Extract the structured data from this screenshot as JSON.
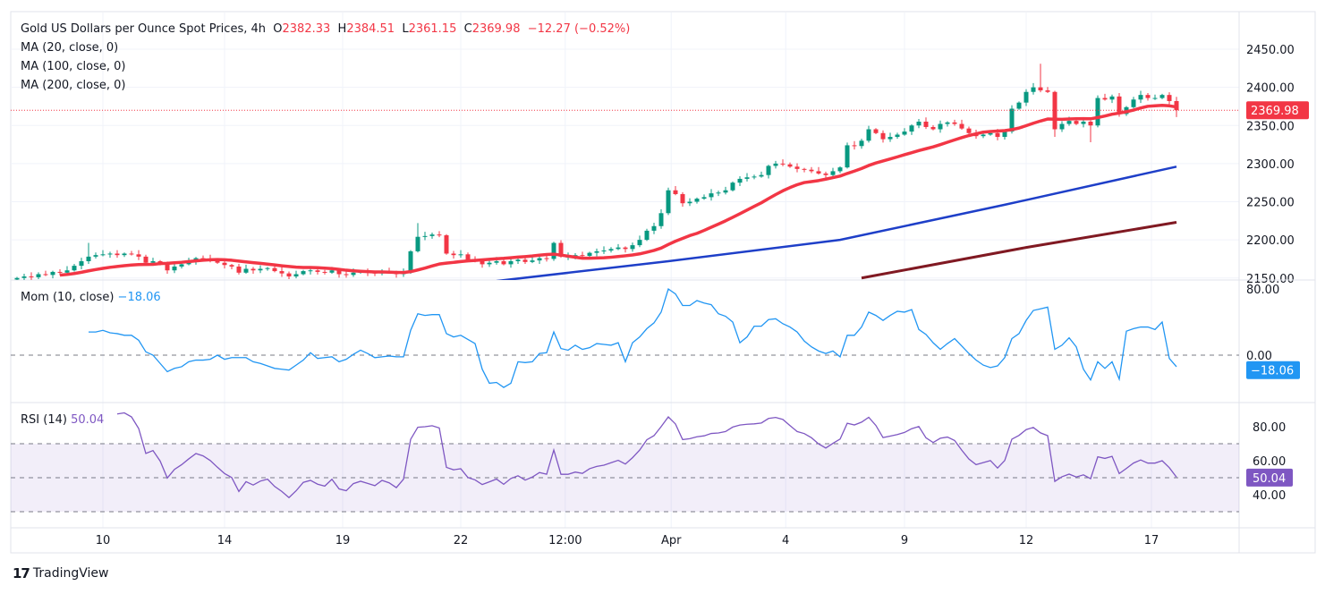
{
  "header": {
    "symbol": "Gold US Dollars per Ounce Spot Prices, 4h",
    "o_label": "O",
    "o": "2382.33",
    "h_label": "H",
    "h": "2384.51",
    "l_label": "L",
    "l": "2361.15",
    "c_label": "C",
    "c": "2369.98",
    "change": "−12.27 (−0.52%)"
  },
  "indicators": {
    "ma20": "MA (20, close, 0)",
    "ma100": "MA (100, close, 0)",
    "ma200": "MA (200, close, 0)",
    "mom_label": "Mom (10, close)",
    "mom_value": "−18.06",
    "rsi_label": "RSI (14)",
    "rsi_value": "50.04"
  },
  "branding": {
    "logo_mark": "17",
    "name": "TradingView"
  },
  "colors": {
    "up": "#089981",
    "down": "#f23645",
    "ma20": "#f23645",
    "ma100": "#1e3fc8",
    "ma200": "#801922",
    "mom": "#2196f3",
    "rsi": "#7e57c2"
  },
  "chart_data": {
    "type": "candlestick",
    "title": "Gold US Dollars per Ounce Spot Prices, 4h",
    "price_axis": {
      "ticks": [
        "2450.00",
        "2400.00",
        "2350.00",
        "2300.00",
        "2250.00",
        "2200.00",
        "2150.00"
      ],
      "range": [
        2150,
        2450
      ],
      "last_price_label": "2369.98",
      "last_price": 2369.98
    },
    "mom_axis": {
      "ticks": [
        "80.00",
        "0.00"
      ],
      "tick_values": [
        80,
        0
      ],
      "last_label": "−18.06",
      "last": -18.06
    },
    "rsi_axis": {
      "ticks": [
        "80.00",
        "60.00",
        "40.00"
      ],
      "tick_values": [
        80,
        60,
        40
      ],
      "bands": [
        70,
        50,
        30
      ],
      "last_label": "50.04",
      "last": 50.04
    },
    "time_axis": [
      {
        "label": "10",
        "index": 12
      },
      {
        "label": "14",
        "index": 29
      },
      {
        "label": "19",
        "index": 45.5
      },
      {
        "label": "22",
        "index": 62
      },
      {
        "label": "12:00",
        "index": 76.6
      },
      {
        "label": "Apr",
        "index": 91.4
      },
      {
        "label": "4",
        "index": 107.4
      },
      {
        "label": "9",
        "index": 124
      },
      {
        "label": "12",
        "index": 141
      },
      {
        "label": "17",
        "index": 158.5
      }
    ],
    "closes": [
      2150,
      2152,
      2151,
      2155,
      2154,
      2158,
      2157,
      2160,
      2166,
      2172,
      2178,
      2180,
      2181,
      2182,
      2180,
      2182,
      2181,
      2178,
      2170,
      2172,
      2168,
      2160,
      2165,
      2168,
      2172,
      2176,
      2175,
      2173,
      2170,
      2167,
      2165,
      2157,
      2162,
      2160,
      2162,
      2163,
      2159,
      2156,
      2152,
      2155,
      2159,
      2160,
      2158,
      2157,
      2160,
      2155,
      2154,
      2157,
      2158,
      2157,
      2156,
      2158,
      2157,
      2155,
      2158,
      2185,
      2204,
      2205,
      2207,
      2206,
      2182,
      2180,
      2181,
      2174,
      2172,
      2168,
      2170,
      2172,
      2168,
      2172,
      2174,
      2171,
      2173,
      2176,
      2175,
      2196,
      2178,
      2178,
      2180,
      2179,
      2183,
      2185,
      2186,
      2188,
      2190,
      2188,
      2193,
      2200,
      2212,
      2218,
      2235,
      2265,
      2260,
      2248,
      2250,
      2254,
      2256,
      2261,
      2262,
      2265,
      2275,
      2280,
      2282,
      2283,
      2285,
      2297,
      2300,
      2299,
      2296,
      2293,
      2292,
      2290,
      2287,
      2285,
      2290,
      2295,
      2324,
      2323,
      2330,
      2345,
      2340,
      2332,
      2335,
      2338,
      2342,
      2350,
      2355,
      2348,
      2345,
      2352,
      2354,
      2352,
      2346,
      2340,
      2336,
      2338,
      2340,
      2335,
      2342,
      2372,
      2380,
      2394,
      2400,
      2396,
      2394,
      2345,
      2352,
      2356,
      2352,
      2355,
      2350,
      2386,
      2384,
      2388,
      2365,
      2374,
      2384,
      2390,
      2386,
      2386,
      2390,
      2382,
      2370
    ],
    "first_open": 2148,
    "wick_overrides": [
      {
        "index": 143,
        "high": 2431
      },
      {
        "index": 145,
        "low": 2335
      },
      {
        "index": 150,
        "low": 2328
      },
      {
        "index": 56,
        "high": 2222
      },
      {
        "index": 90,
        "high": 2240
      },
      {
        "index": 10,
        "high": 2196
      },
      {
        "index": 162,
        "low": 2361
      }
    ],
    "ma100": [
      [
        67,
        2146
      ],
      [
        91,
        2172
      ],
      [
        115,
        2200
      ],
      [
        138,
        2246
      ],
      [
        162,
        2296
      ]
    ],
    "ma200": [
      [
        118,
        2150
      ],
      [
        141,
        2190
      ],
      [
        162,
        2223
      ]
    ],
    "momentum_period": 10,
    "rsi_period": 14
  }
}
